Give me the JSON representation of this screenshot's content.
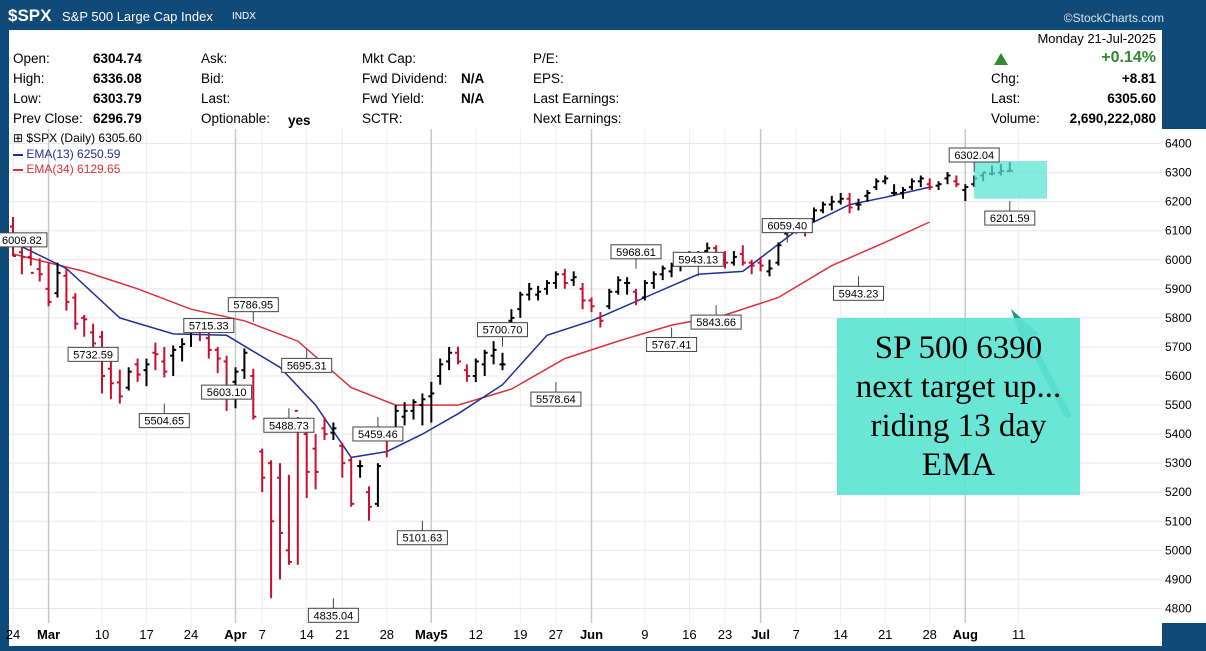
{
  "header": {
    "ticker": "$SPX",
    "name": "S&P 500 Large Cap Index",
    "exchange": "INDX",
    "brand": "©StockCharts.com"
  },
  "quote": {
    "open_label": "Open:",
    "open": "6304.74",
    "high_label": "High:",
    "high": "6336.08",
    "low_label": "Low:",
    "low": "6303.79",
    "prev_label": "Prev Close:",
    "prev": "6296.79",
    "ask_label": "Ask:",
    "bid_label": "Bid:",
    "last_label": "Last:",
    "optionable_label": "Optionable:",
    "optionable": "yes",
    "mktcap_label": "Mkt Cap:",
    "fwd_div_label": "Fwd Dividend:",
    "fwd_div": "N/A",
    "fwd_yield_label": "Fwd Yield:",
    "fwd_yield": "N/A",
    "sctr_label": "SCTR:",
    "pe_label": "P/E:",
    "eps_label": "EPS:",
    "last_earn_label": "Last Earnings:",
    "next_earn_label": "Next Earnings:",
    "date": "Monday   21-Jul-2025",
    "pct_change": "+0.14%",
    "chg_label": "Chg:",
    "chg": "+8.81",
    "last2_label": "Last:",
    "last": "6305.60",
    "volume_label": "Volume:",
    "volume": "2,690,222,080",
    "up_color": "#2e8b2e"
  },
  "legend": {
    "price": "$SPX (Daily) 6305.60",
    "ema13": "EMA(13) 6250.59",
    "ema34": "EMA(34) 6129.65"
  },
  "annotation": {
    "line1": "SP 500 6390",
    "line2": "next target up...",
    "line3": "riding 13  day",
    "line4": "EMA"
  },
  "chart_data": {
    "type": "ohlc",
    "ylim": [
      4750,
      6450
    ],
    "y_ticks": [
      4800,
      4900,
      5000,
      5100,
      5200,
      5300,
      5400,
      5500,
      5600,
      5700,
      5800,
      5900,
      6000,
      6100,
      6200,
      6300,
      6400
    ],
    "x_ticks": [
      {
        "label": "24",
        "x": 0
      },
      {
        "label": "Mar",
        "x": 4
      },
      {
        "label": "10",
        "x": 10
      },
      {
        "label": "17",
        "x": 15
      },
      {
        "label": "24",
        "x": 20
      },
      {
        "label": "Apr",
        "x": 25
      },
      {
        "label": "7",
        "x": 28
      },
      {
        "label": "14",
        "x": 33
      },
      {
        "label": "21",
        "x": 37
      },
      {
        "label": "28",
        "x": 42
      },
      {
        "label": "May5",
        "x": 47
      },
      {
        "label": "12",
        "x": 52
      },
      {
        "label": "19",
        "x": 57
      },
      {
        "label": "27",
        "x": 61
      },
      {
        "label": "Jun",
        "x": 65
      },
      {
        "label": "9",
        "x": 71
      },
      {
        "label": "16",
        "x": 76
      },
      {
        "label": "23",
        "x": 80
      },
      {
        "label": "Jul",
        "x": 84
      },
      {
        "label": "7",
        "x": 88
      },
      {
        "label": "14",
        "x": 93
      },
      {
        "label": "21",
        "x": 98
      },
      {
        "label": "28",
        "x": 103
      },
      {
        "label": "Aug",
        "x": 107
      },
      {
        "label": "11",
        "x": 113
      }
    ],
    "bars": [
      [
        6114,
        6147,
        6013,
        6013
      ],
      [
        6026,
        6043,
        5950,
        6010
      ],
      [
        6010,
        6080,
        5980,
        5955
      ],
      [
        5968,
        6005,
        5925,
        5950
      ],
      [
        5900,
        5990,
        5840,
        5855
      ],
      [
        5885,
        5990,
        5870,
        5955
      ],
      [
        5945,
        5970,
        5825,
        5855
      ],
      [
        5870,
        5885,
        5760,
        5780
      ],
      [
        5800,
        5810,
        5735,
        5795
      ],
      [
        5750,
        5780,
        5690,
        5712
      ],
      [
        5735,
        5755,
        5540,
        5600
      ],
      [
        5625,
        5650,
        5520,
        5575
      ],
      [
        5578,
        5622,
        5505,
        5530
      ],
      [
        5560,
        5630,
        5550,
        5615
      ],
      [
        5640,
        5660,
        5580,
        5605
      ],
      [
        5620,
        5660,
        5565,
        5640
      ],
      [
        5680,
        5715,
        5620,
        5675
      ],
      [
        5650,
        5700,
        5595,
        5615
      ],
      [
        5670,
        5705,
        5600,
        5690
      ],
      [
        5700,
        5730,
        5650,
        5710
      ],
      [
        5760,
        5787,
        5700,
        5770
      ],
      [
        5770,
        5790,
        5720,
        5760
      ],
      [
        5730,
        5750,
        5660,
        5690
      ],
      [
        5690,
        5700,
        5610,
        5660
      ],
      [
        5650,
        5670,
        5480,
        5540
      ],
      [
        5580,
        5630,
        5489,
        5615
      ],
      [
        5620,
        5695,
        5590,
        5680
      ],
      [
        5600,
        5625,
        5450,
        5460
      ],
      [
        5340,
        5350,
        5200,
        5250
      ],
      [
        5300,
        5310,
        4835,
        5100
      ],
      [
        5250,
        5300,
        4900,
        5060
      ],
      [
        5000,
        5260,
        4950,
        4960
      ],
      [
        5480,
        5459,
        4950,
        5450
      ],
      [
        5400,
        5420,
        5180,
        5270
      ],
      [
        5350,
        5400,
        5210,
        5270
      ],
      [
        5420,
        5459,
        5380,
        5400
      ],
      [
        5405,
        5440,
        5380,
        5420
      ],
      [
        5360,
        5370,
        5250,
        5300
      ],
      [
        5310,
        5320,
        5150,
        5160
      ],
      [
        5290,
        5310,
        5250,
        5290
      ],
      [
        5200,
        5220,
        5102,
        5150
      ],
      [
        5160,
        5300,
        5150,
        5290
      ],
      [
        5400,
        5420,
        5320,
        5380
      ],
      [
        5410,
        5500,
        5380,
        5480
      ],
      [
        5460,
        5510,
        5430,
        5480
      ],
      [
        5480,
        5520,
        5450,
        5510
      ],
      [
        5500,
        5540,
        5430,
        5520
      ],
      [
        5530,
        5580,
        5440,
        5540
      ],
      [
        5600,
        5660,
        5570,
        5640
      ],
      [
        5650,
        5700,
        5620,
        5680
      ],
      [
        5680,
        5701,
        5640,
        5650
      ],
      [
        5620,
        5640,
        5580,
        5600
      ],
      [
        5600,
        5660,
        5579,
        5650
      ],
      [
        5640,
        5690,
        5600,
        5680
      ],
      [
        5670,
        5720,
        5640,
        5690
      ],
      [
        5640,
        5680,
        5620,
        5640
      ],
      [
        5790,
        5830,
        5780,
        5800
      ],
      [
        5830,
        5890,
        5800,
        5880
      ],
      [
        5880,
        5920,
        5860,
        5900
      ],
      [
        5880,
        5910,
        5860,
        5890
      ],
      [
        5900,
        5930,
        5880,
        5920
      ],
      [
        5920,
        5960,
        5900,
        5950
      ],
      [
        5950,
        5969,
        5900,
        5920
      ],
      [
        5930,
        5960,
        5910,
        5940
      ],
      [
        5900,
        5920,
        5830,
        5860
      ],
      [
        5860,
        5870,
        5820,
        5840
      ],
      [
        5800,
        5820,
        5767,
        5790
      ],
      [
        5840,
        5900,
        5830,
        5890
      ],
      [
        5890,
        5943,
        5880,
        5930
      ],
      [
        5920,
        5940,
        5880,
        5920
      ],
      [
        5890,
        5900,
        5844,
        5860
      ],
      [
        5870,
        5930,
        5860,
        5920
      ],
      [
        5920,
        5960,
        5900,
        5950
      ],
      [
        5950,
        5980,
        5930,
        5970
      ],
      [
        5960,
        5990,
        5940,
        5980
      ],
      [
        5980,
        6010,
        5960,
        6000
      ],
      [
        6000,
        6030,
        5980,
        6000
      ],
      [
        6000,
        6030,
        5980,
        6020
      ],
      [
        6030,
        6059,
        6010,
        6040
      ],
      [
        6040,
        6050,
        5980,
        6000
      ],
      [
        6000,
        6030,
        5970,
        5990
      ],
      [
        5990,
        6030,
        5980,
        6010
      ],
      [
        6020,
        6050,
        5980,
        5990
      ],
      [
        5990,
        6000,
        5950,
        5980
      ],
      [
        5990,
        6010,
        5960,
        5980
      ],
      [
        5960,
        6000,
        5943,
        5970
      ],
      [
        5990,
        6060,
        5980,
        6050
      ],
      [
        6090,
        6110,
        6080,
        6100
      ],
      [
        6110,
        6140,
        6090,
        6130
      ],
      [
        6120,
        6130,
        6080,
        6100
      ],
      [
        6140,
        6180,
        6130,
        6170
      ],
      [
        6170,
        6200,
        6160,
        6190
      ],
      [
        6190,
        6220,
        6170,
        6200
      ],
      [
        6200,
        6230,
        6190,
        6210
      ],
      [
        6210,
        6230,
        6160,
        6180
      ],
      [
        6190,
        6210,
        6170,
        6190
      ],
      [
        6220,
        6240,
        6200,
        6230
      ],
      [
        6250,
        6280,
        6240,
        6270
      ],
      [
        6270,
        6290,
        6260,
        6280
      ],
      [
        6230,
        6260,
        6220,
        6230
      ],
      [
        6230,
        6250,
        6210,
        6240
      ],
      [
        6250,
        6280,
        6240,
        6270
      ],
      [
        6270,
        6290,
        6250,
        6280
      ],
      [
        6260,
        6280,
        6240,
        6250
      ],
      [
        6255,
        6270,
        6240,
        6260
      ],
      [
        6280,
        6302,
        6260,
        6290
      ],
      [
        6270,
        6290,
        6250,
        6260
      ],
      [
        6240,
        6260,
        6202,
        6250
      ],
      [
        6260,
        6290,
        6250,
        6280
      ],
      [
        6290,
        6300,
        6270,
        6300
      ],
      [
        6296,
        6325,
        6290,
        6297
      ],
      [
        6300,
        6330,
        6290,
        6305
      ],
      [
        6305,
        6336,
        6304,
        6306
      ]
    ],
    "ema13": [
      [
        0,
        6060
      ],
      [
        6,
        5970
      ],
      [
        12,
        5800
      ],
      [
        18,
        5745
      ],
      [
        24,
        5740
      ],
      [
        30,
        5630
      ],
      [
        34,
        5500
      ],
      [
        38,
        5320
      ],
      [
        42,
        5340
      ],
      [
        46,
        5400
      ],
      [
        50,
        5470
      ],
      [
        55,
        5570
      ],
      [
        60,
        5740
      ],
      [
        65,
        5790
      ],
      [
        71,
        5870
      ],
      [
        77,
        5950
      ],
      [
        82,
        5960
      ],
      [
        88,
        6100
      ],
      [
        94,
        6190
      ],
      [
        98,
        6215
      ],
      [
        103,
        6250
      ]
    ],
    "ema34": [
      [
        0,
        6020
      ],
      [
        8,
        5960
      ],
      [
        14,
        5900
      ],
      [
        20,
        5830
      ],
      [
        26,
        5790
      ],
      [
        32,
        5720
      ],
      [
        38,
        5560
      ],
      [
        43,
        5500
      ],
      [
        50,
        5500
      ],
      [
        56,
        5555
      ],
      [
        62,
        5660
      ],
      [
        68,
        5720
      ],
      [
        74,
        5775
      ],
      [
        80,
        5810
      ],
      [
        86,
        5870
      ],
      [
        92,
        5980
      ],
      [
        98,
        6060
      ],
      [
        103,
        6130
      ]
    ],
    "callouts": [
      {
        "label": "6009.82",
        "x": 1,
        "y": 6010
      },
      {
        "label": "5732.59",
        "x": 9,
        "y": 5733
      },
      {
        "label": "5504.65",
        "x": 17,
        "y": 5505
      },
      {
        "label": "5715.33",
        "x": 22,
        "y": 5715
      },
      {
        "label": "5603.10",
        "x": 24,
        "y": 5603
      },
      {
        "label": "5786.95",
        "x": 27,
        "y": 5787
      },
      {
        "label": "5695.31",
        "x": 33,
        "y": 5695
      },
      {
        "label": "5488.73",
        "x": 31,
        "y": 5489
      },
      {
        "label": "5459.46",
        "x": 41,
        "y": 5459
      },
      {
        "label": "4835.04",
        "x": 36,
        "y": 4835
      },
      {
        "label": "5101.63",
        "x": 46,
        "y": 5102
      },
      {
        "label": "5700.70",
        "x": 55,
        "y": 5701
      },
      {
        "label": "5578.64",
        "x": 61,
        "y": 5579
      },
      {
        "label": "5968.61",
        "x": 70,
        "y": 5969
      },
      {
        "label": "5767.41",
        "x": 74,
        "y": 5767
      },
      {
        "label": "5943.13",
        "x": 77,
        "y": 5943
      },
      {
        "label": "5843.66",
        "x": 79,
        "y": 5844
      },
      {
        "label": "6059.40",
        "x": 87,
        "y": 6059
      },
      {
        "label": "5943.23",
        "x": 95,
        "y": 5943
      },
      {
        "label": "6302.04",
        "x": 108,
        "y": 6302
      },
      {
        "label": "6201.59",
        "x": 112,
        "y": 6202
      }
    ],
    "price_color": "#000000",
    "down_color": "#c8102e",
    "ema13_color": "#1f2f9c",
    "ema34_color": "#d9323a",
    "arrow_color": "#1a9a8a",
    "highlight_color": "#5de4d4"
  }
}
